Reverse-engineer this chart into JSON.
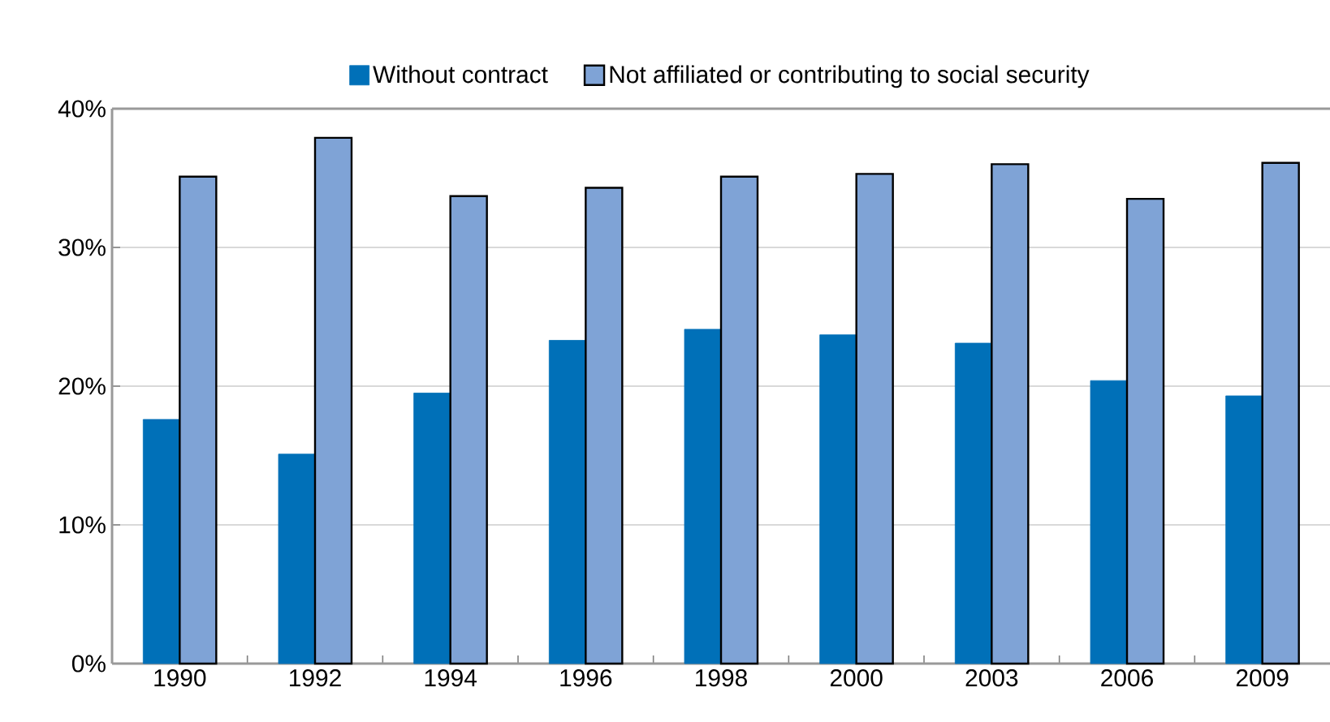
{
  "chart_data": {
    "type": "bar",
    "categories": [
      "1990",
      "1992",
      "1994",
      "1996",
      "1998",
      "2000",
      "2003",
      "2006",
      "2009"
    ],
    "series": [
      {
        "name": "Without contract",
        "color": "#0070b8",
        "values": [
          17.6,
          15.1,
          19.5,
          23.3,
          24.1,
          23.7,
          23.1,
          20.4,
          19.3
        ]
      },
      {
        "name": "Not affiliated or contributing to social security",
        "color": "#7fa3d6",
        "values": [
          35.1,
          37.9,
          33.7,
          34.3,
          35.1,
          35.3,
          36.0,
          33.5,
          36.1
        ]
      }
    ],
    "ylim": [
      0,
      40
    ],
    "yticks": [
      {
        "value": 0,
        "label": "0%"
      },
      {
        "value": 10,
        "label": "10%"
      },
      {
        "value": 20,
        "label": "20%"
      },
      {
        "value": 30,
        "label": "30%"
      },
      {
        "value": 40,
        "label": "40%"
      }
    ],
    "grid": "y",
    "legend": "top"
  }
}
